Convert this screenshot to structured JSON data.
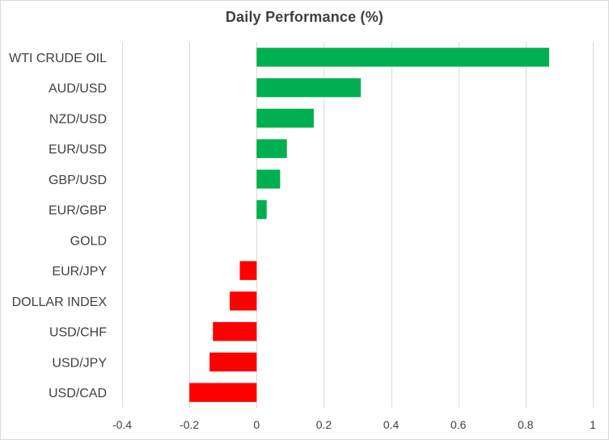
{
  "chart_data": {
    "type": "bar",
    "orientation": "horizontal",
    "title": "Daily Performance (%)",
    "xlabel": "",
    "ylabel": "",
    "categories": [
      "WTI CRUDE OIL",
      "AUD/USD",
      "NZD/USD",
      "EUR/USD",
      "GBP/USD",
      "EUR/GBP",
      "GOLD",
      "EUR/JPY",
      "DOLLAR INDEX",
      "USD/CHF",
      "USD/JPY",
      "USD/CAD"
    ],
    "values": [
      0.87,
      0.31,
      0.17,
      0.09,
      0.07,
      0.03,
      0.0,
      -0.05,
      -0.08,
      -0.13,
      -0.14,
      -0.2
    ],
    "xlim": [
      -0.4,
      1.0
    ],
    "xticks": [
      "-0.4",
      "-0.2",
      "0",
      "0.2",
      "0.4",
      "0.6",
      "0.8",
      "1"
    ],
    "grid": "vertical",
    "legend": "none",
    "colors": {
      "positive": "#00b050",
      "negative": "#ff0000",
      "grid": "#d9d9d9",
      "text": "#404040"
    }
  }
}
